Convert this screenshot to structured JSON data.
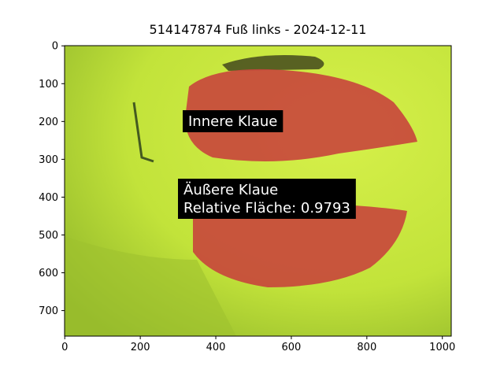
{
  "chart_data": {
    "type": "image",
    "title": "514147874 Fuß links - 2024-12-11",
    "xlim": [
      -0.5,
      1023.5
    ],
    "ylim": [
      767.5,
      -0.5
    ],
    "xticks": [
      0,
      200,
      400,
      600,
      800,
      1000
    ],
    "yticks": [
      0,
      100,
      200,
      300,
      400,
      500,
      600,
      700
    ],
    "annotations": [
      {
        "lines": [
          "Innere Klaue"
        ]
      },
      {
        "lines": [
          "Äußere Klaue",
          "Relative Fläche: 0.9793"
        ]
      }
    ]
  }
}
